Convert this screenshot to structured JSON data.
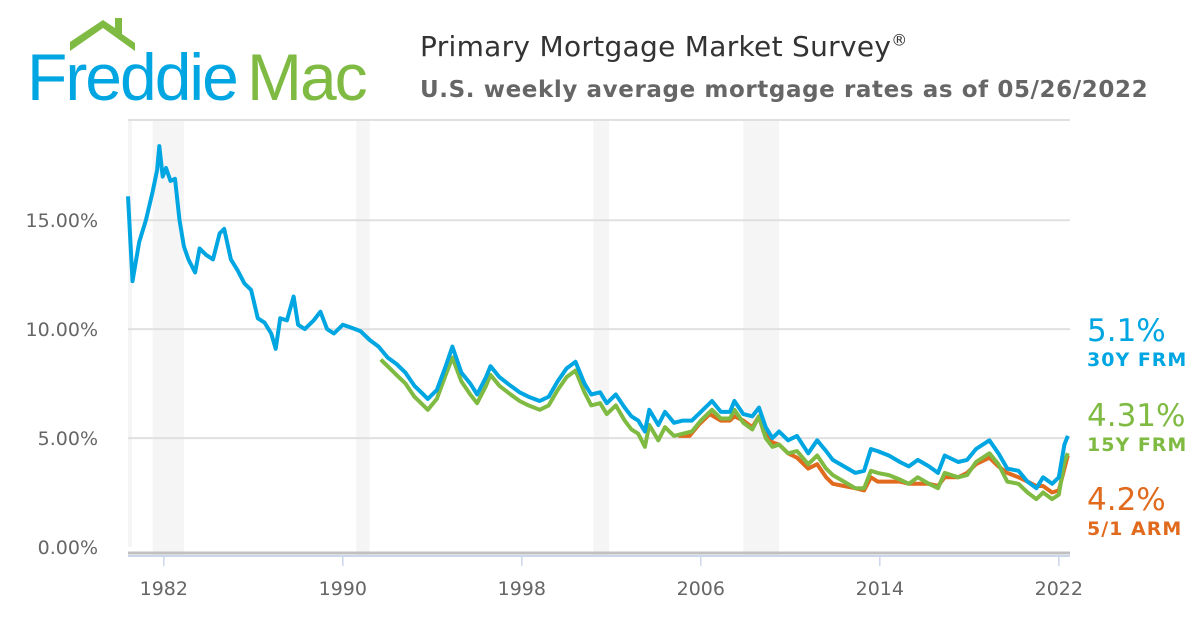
{
  "header": {
    "logo_text": "FreddieMac",
    "title": "Primary Mortgage Market Survey",
    "title_mark": "®",
    "subtitle": "U.S. weekly average mortgage rates as of 05/26/2022"
  },
  "colors": {
    "frm30": "#00a6e2",
    "frm15": "#7fba42",
    "arm51": "#e06a1d",
    "recession": "#f5f5f5",
    "grid": "#e0e0e0"
  },
  "chart_data": {
    "type": "line",
    "ylim": [
      0,
      19.6
    ],
    "xlim": [
      1980.4,
      2022.5
    ],
    "yticks": [
      {
        "v": 0,
        "label": "0.00%"
      },
      {
        "v": 5,
        "label": "5.00%"
      },
      {
        "v": 10,
        "label": "10.00%"
      },
      {
        "v": 15,
        "label": "15.00%"
      }
    ],
    "xticks": [
      {
        "v": 1982,
        "label": "1982"
      },
      {
        "v": 1990,
        "label": "1990"
      },
      {
        "v": 1998,
        "label": "1998"
      },
      {
        "v": 2006,
        "label": "2006"
      },
      {
        "v": 2014,
        "label": "2014"
      },
      {
        "v": 2022,
        "label": "2022"
      }
    ],
    "grid": true,
    "recessions": [
      [
        1981.5,
        1982.9
      ],
      [
        1990.6,
        1991.2
      ],
      [
        2001.2,
        2001.9
      ],
      [
        2007.9,
        2009.5
      ]
    ],
    "series": [
      {
        "key": "frm30",
        "name": "30Y FRM",
        "latest": "5.1%",
        "points": [
          [
            1980.4,
            16.1
          ],
          [
            1980.6,
            12.2
          ],
          [
            1980.9,
            14.0
          ],
          [
            1981.2,
            15.0
          ],
          [
            1981.5,
            16.3
          ],
          [
            1981.7,
            17.3
          ],
          [
            1981.8,
            18.4
          ],
          [
            1981.95,
            17.0
          ],
          [
            1982.1,
            17.4
          ],
          [
            1982.3,
            16.8
          ],
          [
            1982.5,
            16.9
          ],
          [
            1982.7,
            15.0
          ],
          [
            1982.9,
            13.8
          ],
          [
            1983.1,
            13.2
          ],
          [
            1983.4,
            12.6
          ],
          [
            1983.6,
            13.7
          ],
          [
            1983.9,
            13.4
          ],
          [
            1984.2,
            13.2
          ],
          [
            1984.5,
            14.4
          ],
          [
            1984.7,
            14.6
          ],
          [
            1985.0,
            13.2
          ],
          [
            1985.3,
            12.7
          ],
          [
            1985.6,
            12.1
          ],
          [
            1985.9,
            11.8
          ],
          [
            1986.2,
            10.5
          ],
          [
            1986.5,
            10.3
          ],
          [
            1986.8,
            9.8
          ],
          [
            1987.0,
            9.1
          ],
          [
            1987.2,
            10.5
          ],
          [
            1987.5,
            10.4
          ],
          [
            1987.8,
            11.5
          ],
          [
            1988.0,
            10.2
          ],
          [
            1988.3,
            10.0
          ],
          [
            1988.7,
            10.4
          ],
          [
            1989.0,
            10.8
          ],
          [
            1989.3,
            10.0
          ],
          [
            1989.6,
            9.8
          ],
          [
            1990.0,
            10.2
          ],
          [
            1990.3,
            10.1
          ],
          [
            1990.8,
            9.9
          ],
          [
            1991.2,
            9.5
          ],
          [
            1991.6,
            9.2
          ],
          [
            1992.0,
            8.7
          ],
          [
            1992.4,
            8.4
          ],
          [
            1992.8,
            8.0
          ],
          [
            1993.2,
            7.4
          ],
          [
            1993.6,
            7.0
          ],
          [
            1993.8,
            6.8
          ],
          [
            1994.2,
            7.2
          ],
          [
            1994.6,
            8.3
          ],
          [
            1994.9,
            9.2
          ],
          [
            1995.3,
            8.0
          ],
          [
            1995.7,
            7.5
          ],
          [
            1996.0,
            7.0
          ],
          [
            1996.4,
            7.8
          ],
          [
            1996.6,
            8.3
          ],
          [
            1997.0,
            7.8
          ],
          [
            1997.5,
            7.4
          ],
          [
            1997.9,
            7.1
          ],
          [
            1998.3,
            6.9
          ],
          [
            1998.8,
            6.7
          ],
          [
            1999.2,
            6.9
          ],
          [
            1999.6,
            7.6
          ],
          [
            2000.0,
            8.2
          ],
          [
            2000.4,
            8.5
          ],
          [
            2000.8,
            7.5
          ],
          [
            2001.1,
            7.0
          ],
          [
            2001.5,
            7.1
          ],
          [
            2001.8,
            6.6
          ],
          [
            2002.2,
            7.0
          ],
          [
            2002.6,
            6.4
          ],
          [
            2002.9,
            6.0
          ],
          [
            2003.2,
            5.8
          ],
          [
            2003.5,
            5.3
          ],
          [
            2003.7,
            6.3
          ],
          [
            2004.1,
            5.6
          ],
          [
            2004.4,
            6.2
          ],
          [
            2004.8,
            5.7
          ],
          [
            2005.2,
            5.8
          ],
          [
            2005.6,
            5.8
          ],
          [
            2006.0,
            6.2
          ],
          [
            2006.5,
            6.7
          ],
          [
            2006.9,
            6.2
          ],
          [
            2007.3,
            6.2
          ],
          [
            2007.5,
            6.7
          ],
          [
            2007.9,
            6.1
          ],
          [
            2008.3,
            6.0
          ],
          [
            2008.6,
            6.4
          ],
          [
            2008.9,
            5.5
          ],
          [
            2009.2,
            5.0
          ],
          [
            2009.5,
            5.3
          ],
          [
            2009.9,
            4.9
          ],
          [
            2010.3,
            5.1
          ],
          [
            2010.8,
            4.3
          ],
          [
            2011.2,
            4.9
          ],
          [
            2011.6,
            4.4
          ],
          [
            2011.9,
            4.0
          ],
          [
            2012.4,
            3.7
          ],
          [
            2012.9,
            3.4
          ],
          [
            2013.3,
            3.5
          ],
          [
            2013.6,
            4.5
          ],
          [
            2013.9,
            4.4
          ],
          [
            2014.4,
            4.2
          ],
          [
            2014.9,
            3.9
          ],
          [
            2015.3,
            3.7
          ],
          [
            2015.7,
            4.0
          ],
          [
            2016.2,
            3.7
          ],
          [
            2016.6,
            3.4
          ],
          [
            2016.9,
            4.2
          ],
          [
            2017.5,
            3.9
          ],
          [
            2017.9,
            4.0
          ],
          [
            2018.3,
            4.5
          ],
          [
            2018.9,
            4.9
          ],
          [
            2019.3,
            4.3
          ],
          [
            2019.7,
            3.6
          ],
          [
            2020.2,
            3.5
          ],
          [
            2020.6,
            3.0
          ],
          [
            2021.0,
            2.7
          ],
          [
            2021.3,
            3.2
          ],
          [
            2021.7,
            2.9
          ],
          [
            2022.0,
            3.2
          ],
          [
            2022.25,
            4.7
          ],
          [
            2022.4,
            5.1
          ]
        ]
      },
      {
        "key": "frm15",
        "name": "15Y FRM",
        "latest": "4.31%",
        "points": [
          [
            1991.7,
            8.6
          ],
          [
            1992.0,
            8.3
          ],
          [
            1992.4,
            7.9
          ],
          [
            1992.8,
            7.5
          ],
          [
            1993.2,
            6.9
          ],
          [
            1993.6,
            6.5
          ],
          [
            1993.8,
            6.3
          ],
          [
            1994.2,
            6.8
          ],
          [
            1994.6,
            7.9
          ],
          [
            1994.9,
            8.7
          ],
          [
            1995.3,
            7.6
          ],
          [
            1995.7,
            7.0
          ],
          [
            1996.0,
            6.6
          ],
          [
            1996.4,
            7.4
          ],
          [
            1996.6,
            7.9
          ],
          [
            1997.0,
            7.4
          ],
          [
            1997.5,
            7.0
          ],
          [
            1997.9,
            6.7
          ],
          [
            1998.3,
            6.5
          ],
          [
            1998.8,
            6.3
          ],
          [
            1999.2,
            6.5
          ],
          [
            1999.6,
            7.2
          ],
          [
            2000.0,
            7.8
          ],
          [
            2000.4,
            8.1
          ],
          [
            2000.8,
            7.1
          ],
          [
            2001.1,
            6.5
          ],
          [
            2001.5,
            6.6
          ],
          [
            2001.8,
            6.1
          ],
          [
            2002.2,
            6.5
          ],
          [
            2002.6,
            5.8
          ],
          [
            2002.9,
            5.4
          ],
          [
            2003.2,
            5.2
          ],
          [
            2003.5,
            4.6
          ],
          [
            2003.7,
            5.6
          ],
          [
            2004.1,
            4.9
          ],
          [
            2004.4,
            5.5
          ],
          [
            2004.8,
            5.1
          ],
          [
            2005.2,
            5.2
          ],
          [
            2005.6,
            5.3
          ],
          [
            2006.0,
            5.8
          ],
          [
            2006.5,
            6.3
          ],
          [
            2006.9,
            5.9
          ],
          [
            2007.3,
            5.9
          ],
          [
            2007.5,
            6.3
          ],
          [
            2007.9,
            5.7
          ],
          [
            2008.3,
            5.4
          ],
          [
            2008.6,
            6.0
          ],
          [
            2008.9,
            5.0
          ],
          [
            2009.2,
            4.6
          ],
          [
            2009.5,
            4.7
          ],
          [
            2009.9,
            4.3
          ],
          [
            2010.3,
            4.4
          ],
          [
            2010.8,
            3.8
          ],
          [
            2011.2,
            4.2
          ],
          [
            2011.6,
            3.6
          ],
          [
            2011.9,
            3.3
          ],
          [
            2012.4,
            3.0
          ],
          [
            2012.9,
            2.7
          ],
          [
            2013.3,
            2.7
          ],
          [
            2013.6,
            3.5
          ],
          [
            2013.9,
            3.4
          ],
          [
            2014.4,
            3.3
          ],
          [
            2014.9,
            3.1
          ],
          [
            2015.3,
            2.9
          ],
          [
            2015.7,
            3.2
          ],
          [
            2016.2,
            2.9
          ],
          [
            2016.6,
            2.7
          ],
          [
            2016.9,
            3.4
          ],
          [
            2017.5,
            3.2
          ],
          [
            2017.9,
            3.3
          ],
          [
            2018.3,
            3.9
          ],
          [
            2018.9,
            4.3
          ],
          [
            2019.3,
            3.8
          ],
          [
            2019.7,
            3.0
          ],
          [
            2020.2,
            2.9
          ],
          [
            2020.6,
            2.5
          ],
          [
            2021.0,
            2.2
          ],
          [
            2021.3,
            2.5
          ],
          [
            2021.7,
            2.2
          ],
          [
            2022.0,
            2.4
          ],
          [
            2022.25,
            3.9
          ],
          [
            2022.4,
            4.31
          ]
        ]
      },
      {
        "key": "arm51",
        "name": "5/1 ARM",
        "latest": "4.2%",
        "points": [
          [
            2005.0,
            5.1
          ],
          [
            2005.5,
            5.1
          ],
          [
            2005.9,
            5.6
          ],
          [
            2006.4,
            6.1
          ],
          [
            2006.9,
            5.8
          ],
          [
            2007.3,
            5.8
          ],
          [
            2007.5,
            6.0
          ],
          [
            2007.9,
            5.8
          ],
          [
            2008.3,
            5.5
          ],
          [
            2008.6,
            6.0
          ],
          [
            2008.8,
            5.3
          ],
          [
            2009.2,
            4.8
          ],
          [
            2009.5,
            4.7
          ],
          [
            2009.9,
            4.3
          ],
          [
            2010.3,
            4.1
          ],
          [
            2010.8,
            3.6
          ],
          [
            2011.2,
            3.8
          ],
          [
            2011.6,
            3.2
          ],
          [
            2011.9,
            2.9
          ],
          [
            2012.4,
            2.8
          ],
          [
            2012.9,
            2.7
          ],
          [
            2013.3,
            2.6
          ],
          [
            2013.6,
            3.2
          ],
          [
            2013.9,
            3.0
          ],
          [
            2014.4,
            3.0
          ],
          [
            2014.9,
            3.0
          ],
          [
            2015.3,
            2.9
          ],
          [
            2015.7,
            2.9
          ],
          [
            2016.2,
            2.9
          ],
          [
            2016.6,
            2.8
          ],
          [
            2016.9,
            3.2
          ],
          [
            2017.5,
            3.2
          ],
          [
            2017.9,
            3.4
          ],
          [
            2018.3,
            3.8
          ],
          [
            2018.9,
            4.1
          ],
          [
            2019.3,
            3.7
          ],
          [
            2019.7,
            3.4
          ],
          [
            2020.2,
            3.2
          ],
          [
            2020.6,
            3.0
          ],
          [
            2021.0,
            2.8
          ],
          [
            2021.3,
            2.8
          ],
          [
            2021.7,
            2.5
          ],
          [
            2022.0,
            2.6
          ],
          [
            2022.25,
            3.6
          ],
          [
            2022.4,
            4.2
          ]
        ]
      }
    ]
  }
}
